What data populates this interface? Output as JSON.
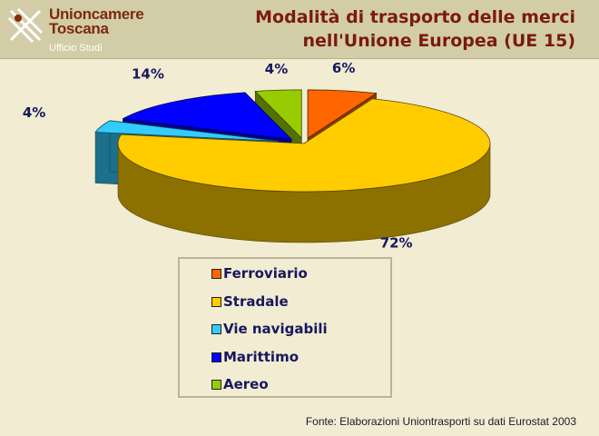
{
  "header": {
    "logo_line1": "Unioncamere",
    "logo_line2": "Toscana",
    "logo_sub": "Ufficio Studi",
    "title_line1": "Modalità di trasporto delle merci",
    "title_line2": "nell'Unione Europea (UE 15)"
  },
  "chart_data": {
    "type": "pie",
    "title": "Modalità di trasporto delle merci nell'Unione Europea (UE 15)",
    "categories": [
      "Ferroviario",
      "Stradale",
      "Vie navigabili",
      "Marittimo",
      "Aereo"
    ],
    "values": [
      6,
      72,
      4,
      14,
      4
    ],
    "data_labels": [
      "6%",
      "72%",
      "4%",
      "14%",
      "4%"
    ],
    "colors": [
      "#ff6600",
      "#ffcc00",
      "#33ccff",
      "#0000ff",
      "#99cc00"
    ],
    "exploded": true,
    "three_d": true,
    "legend_placement": "bottom-center"
  },
  "legend": {
    "items": [
      {
        "label": "Ferroviario",
        "color": "#ff6600"
      },
      {
        "label": "Stradale",
        "color": "#ffcc00"
      },
      {
        "label": "Vie navigabili",
        "color": "#33ccff"
      },
      {
        "label": "Marittimo",
        "color": "#0000ff"
      },
      {
        "label": "Aereo",
        "color": "#99cc00"
      }
    ]
  },
  "source": "Fonte: Elaborazioni Uniontrasporti su dati Eurostat 2003"
}
